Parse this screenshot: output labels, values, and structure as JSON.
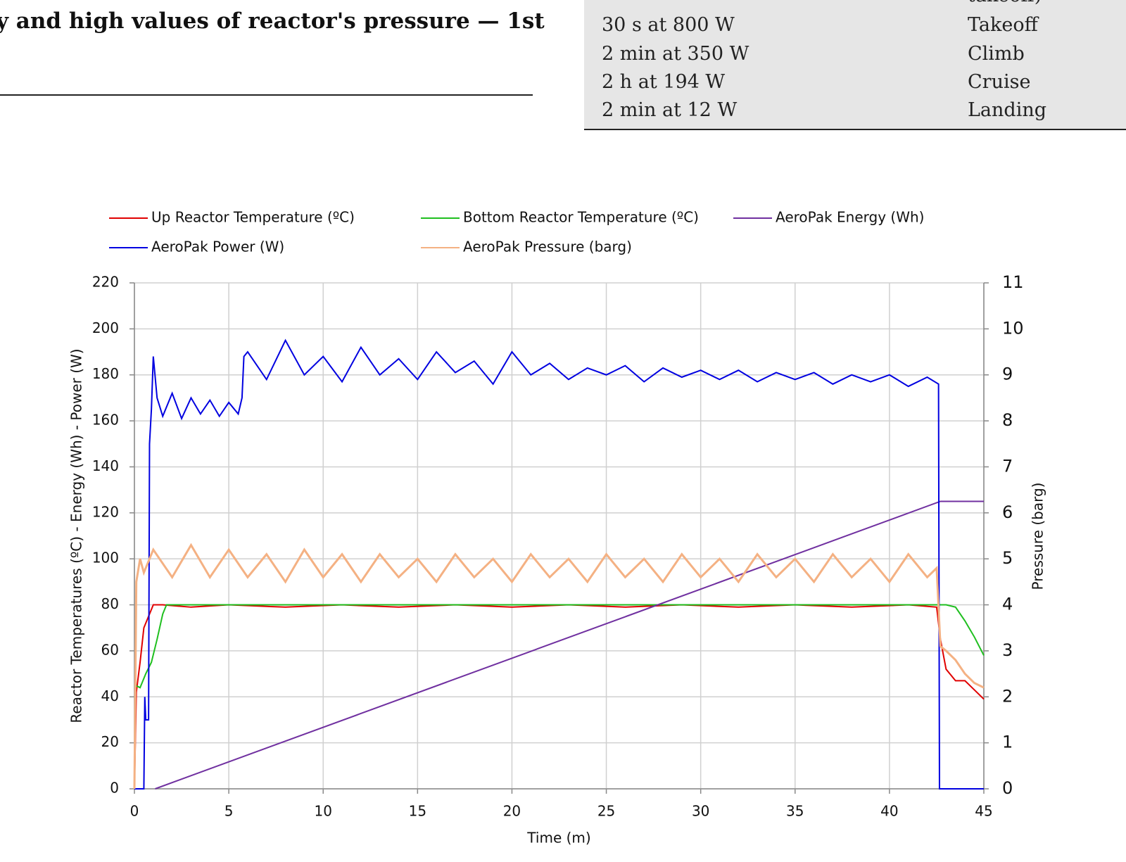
{
  "header": {
    "title": "y and high values of reactor's pressure — 1st"
  },
  "table": {
    "rows": [
      [
        "",
        "takeoff)"
      ],
      [
        "30 s at 800 W",
        "Takeoff"
      ],
      [
        "2 min at 350 W",
        "Climb"
      ],
      [
        "2 h at 194 W",
        "Cruise"
      ],
      [
        "2 min at 12 W",
        "Landing"
      ]
    ]
  },
  "chart_data": {
    "type": "line",
    "x_label": "Time (m)",
    "y_label": "Reactor Temperatures (ºC) - Energy (Wh) - Power (W)",
    "y2_label": "Pressure (barg)",
    "xlim": [
      0,
      45
    ],
    "xticks": [
      0,
      5,
      10,
      15,
      20,
      25,
      30,
      35,
      40,
      45
    ],
    "ylim": [
      0,
      220
    ],
    "yticks": [
      0,
      20,
      40,
      60,
      80,
      100,
      120,
      140,
      160,
      180,
      200,
      220
    ],
    "y2lim": [
      0,
      11
    ],
    "y2ticks": [
      0,
      1,
      2,
      3,
      4,
      5,
      6,
      7,
      8,
      9,
      10,
      11
    ],
    "grid": true,
    "legend": "top",
    "series": [
      {
        "name": "Up Reactor Temperature (ºC)",
        "color": "#e00000",
        "x": [
          0,
          0.1,
          0.3,
          0.5,
          0.7,
          0.9,
          1.0,
          1.5,
          3,
          5,
          8,
          11,
          14,
          17,
          20,
          23,
          26,
          29,
          32,
          35,
          38,
          41,
          42.5,
          42.7,
          43,
          43.5,
          44,
          44.5,
          45
        ],
        "values": [
          0,
          42,
          55,
          70,
          74,
          78,
          80,
          80,
          79,
          80,
          79,
          80,
          79,
          80,
          79,
          80,
          79,
          80,
          79,
          80,
          79,
          80,
          79,
          65,
          52,
          47,
          47,
          43,
          39
        ]
      },
      {
        "name": "Bottom Reactor Temperature (ºC)",
        "color": "#1fbf1f",
        "x": [
          0,
          0.05,
          0.3,
          0.6,
          0.9,
          1.2,
          1.5,
          1.7,
          3,
          6,
          9,
          12,
          15,
          18,
          21,
          24,
          27,
          30,
          33,
          36,
          39,
          42,
          43,
          43.5,
          44,
          44.5,
          45
        ],
        "values": [
          0,
          45,
          44,
          50,
          55,
          65,
          76,
          80,
          80,
          80,
          80,
          80,
          80,
          80,
          80,
          80,
          80,
          80,
          80,
          80,
          80,
          80,
          80,
          79,
          73,
          66,
          58
        ]
      },
      {
        "name": "AeroPak Energy (Wh)",
        "color": "#7030a0",
        "x": [
          1.1,
          42.7,
          45
        ],
        "values": [
          0,
          125,
          125
        ]
      },
      {
        "name": "AeroPak Power (W)",
        "color": "#0000e0",
        "x": [
          0,
          0.5,
          0.55,
          0.6,
          0.75,
          0.8,
          0.9,
          1.0,
          1.2,
          1.5,
          2,
          2.5,
          3,
          3.5,
          4,
          4.5,
          5,
          5.5,
          5.7,
          5.8,
          6,
          7,
          8,
          9,
          10,
          11,
          12,
          13,
          14,
          15,
          16,
          17,
          18,
          19,
          20,
          21,
          22,
          23,
          24,
          25,
          26,
          27,
          28,
          29,
          30,
          31,
          32,
          33,
          34,
          35,
          36,
          37,
          38,
          39,
          40,
          41,
          42,
          42.6,
          42.65,
          45
        ],
        "values": [
          0,
          0,
          40,
          30,
          30,
          150,
          165,
          188,
          170,
          162,
          172,
          161,
          170,
          163,
          169,
          162,
          168,
          163,
          170,
          188,
          190,
          178,
          195,
          180,
          188,
          177,
          192,
          180,
          187,
          178,
          190,
          181,
          186,
          176,
          190,
          180,
          185,
          178,
          183,
          180,
          184,
          177,
          183,
          179,
          182,
          178,
          182,
          177,
          181,
          178,
          181,
          176,
          180,
          177,
          180,
          175,
          179,
          176,
          0,
          0
        ]
      },
      {
        "name": "AeroPak Pressure (barg)",
        "color": "#f4b183",
        "axis": "y2",
        "x": [
          0,
          0.1,
          0.3,
          0.5,
          1,
          2,
          3,
          4,
          5,
          6,
          7,
          8,
          9,
          10,
          11,
          12,
          13,
          14,
          15,
          16,
          17,
          18,
          19,
          20,
          21,
          22,
          23,
          24,
          25,
          26,
          27,
          28,
          29,
          30,
          31,
          32,
          33,
          34,
          35,
          36,
          37,
          38,
          39,
          40,
          41,
          42,
          42.5,
          42.7,
          43,
          43.5,
          44,
          44.5,
          45
        ],
        "values": [
          0,
          4.5,
          5,
          4.7,
          5.2,
          4.6,
          5.3,
          4.6,
          5.2,
          4.6,
          5.1,
          4.5,
          5.2,
          4.6,
          5.1,
          4.5,
          5.1,
          4.6,
          5.0,
          4.5,
          5.1,
          4.6,
          5.0,
          4.5,
          5.1,
          4.6,
          5.0,
          4.5,
          5.1,
          4.6,
          5.0,
          4.5,
          5.1,
          4.6,
          5.0,
          4.5,
          5.1,
          4.6,
          5.0,
          4.5,
          5.1,
          4.6,
          5.0,
          4.5,
          5.1,
          4.6,
          4.8,
          3.1,
          3.0,
          2.8,
          2.5,
          2.3,
          2.2
        ]
      }
    ]
  }
}
